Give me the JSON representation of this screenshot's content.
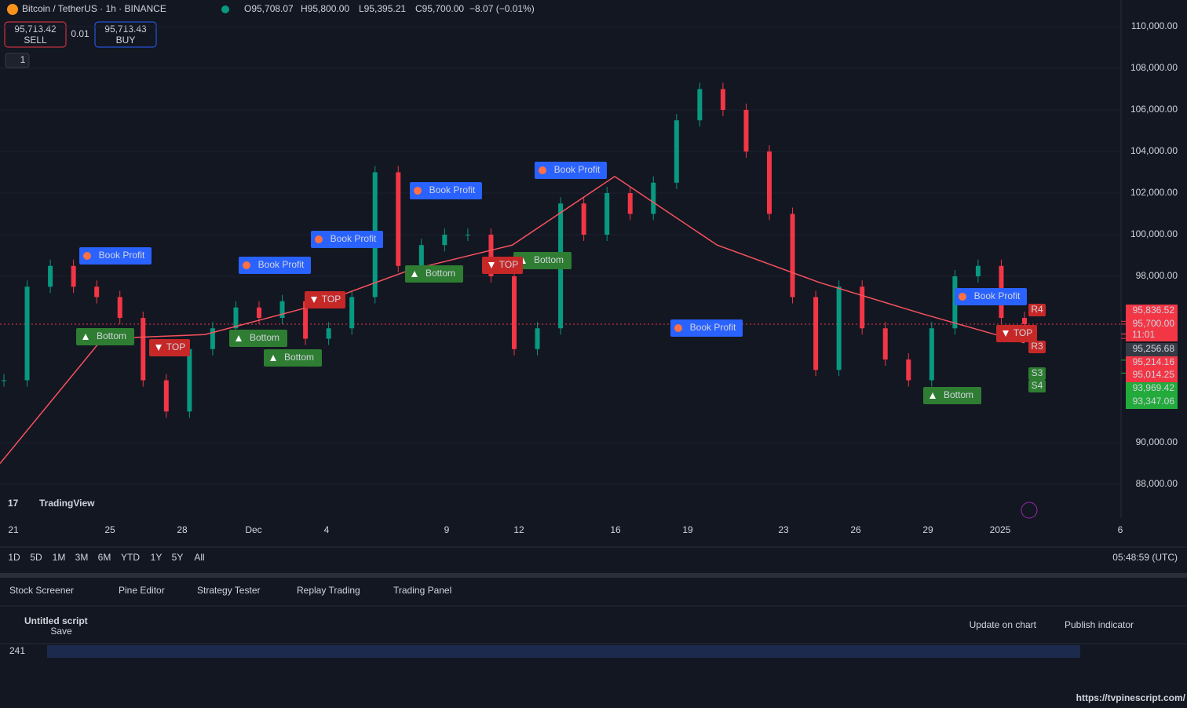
{
  "header": {
    "symbol": "Bitcoin / TetherUS · 1h · BINANCE",
    "ohlc": [
      "O95,708.07",
      "H95,800.00",
      "L95,395.21",
      "C95,700.00",
      "−8.07 (−0.01%)"
    ]
  },
  "trade": {
    "sell_price": "95,713.42",
    "sell": "SELL",
    "qty": "0.01",
    "buy_price": "95,713.43",
    "buy": "BUY"
  },
  "indicator_count": "1",
  "chart": {
    "price_ticks": [
      {
        "value": 110000,
        "label": "110,000.00"
      },
      {
        "value": 108000,
        "label": "108,000.00"
      },
      {
        "value": 106000,
        "label": "106,000.00"
      },
      {
        "value": 104000,
        "label": "104,000.00"
      },
      {
        "value": 102000,
        "label": "102,000.00"
      },
      {
        "value": 100000,
        "label": "100,000.00"
      },
      {
        "value": 98000,
        "label": "98,000.00"
      },
      {
        "value": 90000,
        "label": "90,000.00"
      },
      {
        "value": 88000,
        "label": "88,000.00"
      }
    ],
    "closes": [
      93000,
      97500,
      98500,
      97500,
      97000,
      96000,
      93000,
      91500,
      94500,
      95500,
      96500,
      96000,
      96800,
      95000,
      95500,
      97000,
      103000,
      98500,
      99500,
      100000,
      100000,
      98000,
      94500,
      95500,
      101500,
      100000,
      102000,
      101000,
      102500,
      105500,
      107000,
      106000,
      104000,
      101000,
      97000,
      93500,
      97500,
      95500,
      94000,
      93000,
      95500,
      98000,
      98500,
      96000,
      95700
    ],
    "ma": [
      89000,
      95000,
      95200,
      96500,
      98300,
      99500,
      102800,
      99500,
      97700,
      96200,
      94800
    ],
    "price_tags": [
      {
        "value": 95836.52,
        "label": "95,836.52",
        "color": "#f23645"
      },
      {
        "value": 95700,
        "label": "95,700.00",
        "color": "#f23645"
      },
      {
        "value": 95256.68,
        "label": "95,256.68",
        "color": "#363a45"
      },
      {
        "value": 95214.16,
        "label": "95,214.16",
        "color": "#f23645"
      },
      {
        "value": 95014.25,
        "label": "95,014.25",
        "color": "#f23645"
      },
      {
        "value": 93969.42,
        "label": "93,969.42",
        "color": "#22ab3b"
      },
      {
        "value": 93347.06,
        "label": "93,347.06",
        "color": "#22ab3b"
      }
    ],
    "countdown": "11:01",
    "dates": [
      "21",
      "25",
      "28",
      "Dec",
      "4",
      "9",
      "12",
      "16",
      "19",
      "23",
      "26",
      "29",
      "2025",
      "6"
    ],
    "signals": [
      "Book Profit",
      "Book Profit",
      "Book Profit",
      "Book Profit",
      "Book Profit",
      "Book Profit",
      "Book Profit",
      "Bottom",
      "Bottom",
      "Bottom",
      "Bottom",
      "Bottom",
      "Bottom",
      "TOP",
      "TOP",
      "TOP",
      "TOP"
    ],
    "levels": [
      "R4",
      "R3",
      "S3",
      "S4"
    ],
    "logo": "TradingView"
  },
  "bottom_bar": {
    "ranges": [
      "1D",
      "5D",
      "1M",
      "3M",
      "6M",
      "YTD",
      "1Y",
      "5Y",
      "All"
    ],
    "clock": "05:48:59 (UTC)"
  },
  "tabs": [
    "Stock Screener",
    "Pine Editor",
    "Strategy Tester",
    "Replay Trading",
    "Trading Panel"
  ],
  "editor": {
    "script": "Untitled script",
    "save": "Save",
    "update": "Update on chart",
    "publish": "Publish indicator",
    "line": "241"
  },
  "watermark": "https://tvpinescript.com/"
}
